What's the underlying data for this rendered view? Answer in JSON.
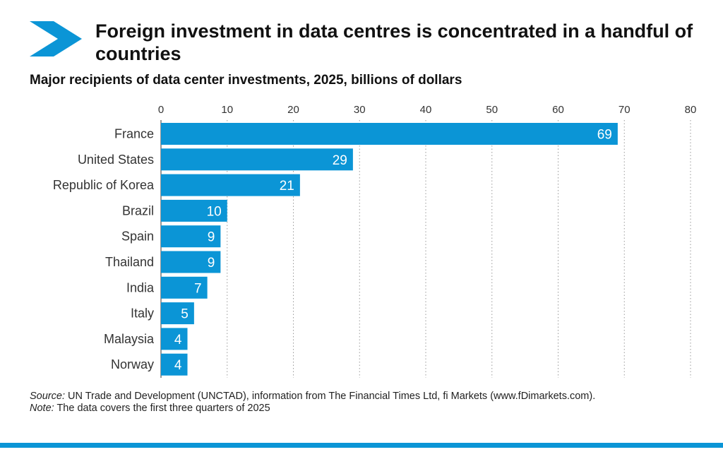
{
  "header": {
    "title": "Foreign investment in data centres is concentrated in a handful of countries",
    "subtitle": "Major recipients of data center investments, 2025, billions of dollars",
    "logo_icon": "chevron-arrow-icon"
  },
  "colors": {
    "accent": "#0b95d6",
    "bar": "#0b95d6",
    "grid": "#9a9a9a"
  },
  "chart_data": {
    "type": "bar",
    "orientation": "horizontal",
    "categories": [
      "France",
      "United States",
      "Republic of Korea",
      "Brazil",
      "Spain",
      "Thailand",
      "India",
      "Italy",
      "Malaysia",
      "Norway"
    ],
    "values": [
      69,
      29,
      21,
      10,
      9,
      9,
      7,
      5,
      4,
      4
    ],
    "value_labels": [
      "69",
      "29",
      "21",
      "10",
      "9",
      "9",
      "7",
      "5",
      "4",
      "4"
    ],
    "xticks": [
      "0",
      "10",
      "20",
      "30",
      "40",
      "50",
      "60",
      "70",
      "80"
    ],
    "xlim": [
      0,
      80
    ],
    "grid": "vertical dotted",
    "axis_position": "top",
    "title": "Major recipients of data center investments, 2025, billions of dollars",
    "xlabel": "",
    "ylabel": ""
  },
  "footer": {
    "source_label": "Source:",
    "source_text": " UN Trade and Development (UNCTAD), information from The Financial Times Ltd, fi Markets (www.fDimarkets.com).",
    "note_label": "Note:",
    "note_text": " The data covers the first three quarters of 2025"
  }
}
